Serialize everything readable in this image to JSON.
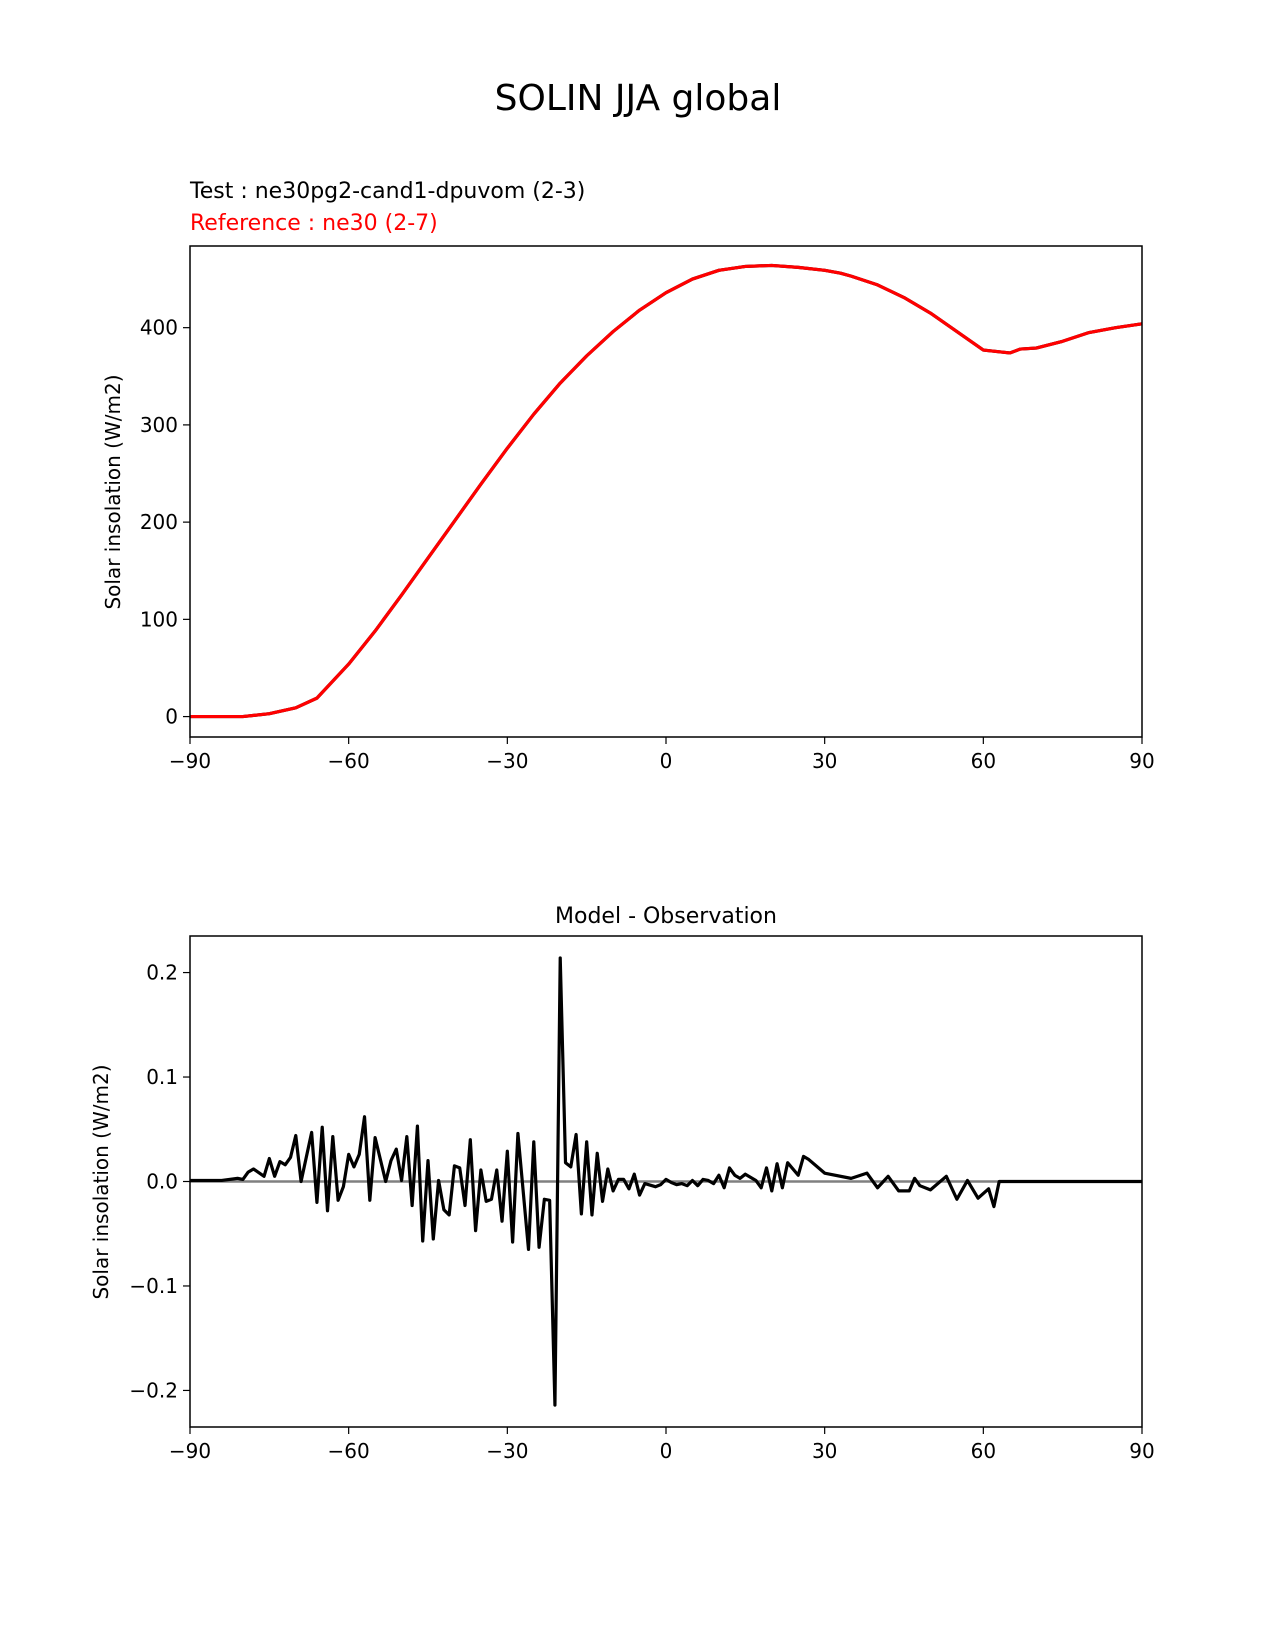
{
  "figure": {
    "title": "SOLIN JJA global"
  },
  "chart_data": [
    {
      "type": "line",
      "legend_test": "Test : ne30pg2-cand1-dpuvom (2-3)",
      "legend_reference": "Reference : ne30 (2-7)",
      "title": "",
      "xlabel": "",
      "ylabel": "Solar insolation (W/m2)",
      "xlim": [
        -90,
        90
      ],
      "ylim": [
        -21,
        484
      ],
      "xticks": [
        -90,
        -60,
        -30,
        0,
        30,
        60,
        90
      ],
      "xtick_labels": [
        "−90",
        "−60",
        "−30",
        "0",
        "30",
        "60",
        "90"
      ],
      "yticks": [
        0,
        100,
        200,
        300,
        400
      ],
      "ytick_labels": [
        "0",
        "100",
        "200",
        "300",
        "400"
      ],
      "colors": {
        "test": "#000000",
        "reference": "#ff0000"
      },
      "x": [
        -90,
        -85,
        -80,
        -75,
        -70,
        -66,
        -60,
        -55,
        -50,
        -45,
        -40,
        -35,
        -30,
        -25,
        -20,
        -15,
        -10,
        -5,
        0,
        5,
        10,
        15,
        20,
        25,
        30,
        33,
        35,
        40,
        45,
        50,
        55,
        60,
        65,
        67,
        70,
        75,
        80,
        85,
        90
      ],
      "series": [
        {
          "name": "Test : ne30pg2-cand1-dpuvom (2-3)",
          "values": [
            0,
            0,
            0,
            3,
            9,
            19,
            54,
            88,
            125,
            163,
            201,
            239,
            276,
            311,
            343,
            371,
            396,
            418,
            436,
            450,
            459,
            463,
            464,
            462,
            459,
            456,
            453,
            444,
            431,
            415,
            396,
            377,
            374,
            378,
            379,
            386,
            395,
            400,
            404
          ]
        },
        {
          "name": "Reference : ne30 (2-7)",
          "values": [
            0,
            0,
            0,
            3,
            9,
            19,
            54,
            88,
            125,
            163,
            201,
            239,
            276,
            311,
            343,
            371,
            396,
            418,
            436,
            450,
            459,
            463,
            464,
            462,
            459,
            456,
            453,
            444,
            431,
            415,
            396,
            377,
            374,
            378,
            379,
            386,
            395,
            400,
            404
          ]
        }
      ]
    },
    {
      "type": "line",
      "title": "Model - Observation",
      "xlabel": "",
      "ylabel": "Solar insolation (W/m2)",
      "xlim": [
        -90,
        90
      ],
      "ylim": [
        -0.235,
        0.235
      ],
      "xticks": [
        -90,
        -60,
        -30,
        0,
        30,
        60,
        90
      ],
      "xtick_labels": [
        "−90",
        "−60",
        "−30",
        "0",
        "30",
        "60",
        "90"
      ],
      "yticks": [
        -0.2,
        -0.1,
        0.0,
        0.1,
        0.2
      ],
      "ytick_labels": [
        "−0.2",
        "−0.1",
        "0.0",
        "0.1",
        "0.2"
      ],
      "colors": {
        "difference": "#000000",
        "zero_line": "#808080"
      },
      "zero_line": 0,
      "series": [
        {
          "name": "",
          "x": [
            -90,
            -84,
            -81,
            -80,
            -79,
            -78,
            -76,
            -75,
            -74,
            -73,
            -72,
            -71,
            -70,
            -69,
            -67,
            -66,
            -65,
            -64,
            -63,
            -62,
            -61,
            -60,
            -59,
            -58,
            -57,
            -56,
            -55,
            -53,
            -52,
            -51,
            -50,
            -49,
            -48,
            -47,
            -46,
            -45,
            -44,
            -43,
            -42,
            -41,
            -40,
            -39,
            -38,
            -37,
            -36,
            -35,
            -34,
            -33,
            -32,
            -31,
            -30,
            -29,
            -28,
            -26,
            -25,
            -24,
            -23,
            -22,
            -21,
            -20,
            -19,
            -18,
            -17,
            -16,
            -15,
            -14,
            -13,
            -12,
            -11,
            -10,
            -9,
            -8,
            -7,
            -6,
            -5,
            -4,
            -2,
            -1,
            0,
            1,
            2,
            3,
            4,
            5,
            6,
            7,
            8,
            9,
            10,
            11,
            12,
            13,
            14,
            15,
            17,
            18,
            19,
            20,
            21,
            22,
            23,
            25,
            26,
            27,
            30,
            35,
            38,
            40,
            42,
            44,
            46,
            47,
            48,
            50,
            53,
            55,
            57,
            59,
            61,
            62,
            63,
            64,
            65,
            67,
            69,
            70,
            72,
            73,
            75,
            76,
            77,
            78,
            79,
            80,
            82,
            83,
            84,
            85,
            86,
            87,
            88,
            89,
            90
          ],
          "values": [
            0.001,
            0.001,
            0.003,
            0.002,
            0.009,
            0.012,
            0.005,
            0.022,
            0.005,
            0.019,
            0.016,
            0.023,
            0.044,
            0.0,
            0.047,
            -0.02,
            0.052,
            -0.028,
            0.043,
            -0.018,
            -0.005,
            0.026,
            0.014,
            0.026,
            0.062,
            -0.018,
            0.042,
            0.0,
            0.02,
            0.031,
            0.001,
            0.043,
            -0.023,
            0.053,
            -0.057,
            0.02,
            -0.055,
            0.001,
            -0.027,
            -0.032,
            0.015,
            0.013,
            -0.023,
            0.04,
            -0.047,
            0.011,
            -0.019,
            -0.017,
            0.011,
            -0.038,
            0.029,
            -0.058,
            0.046,
            -0.065,
            0.038,
            -0.063,
            -0.017,
            -0.018,
            -0.214,
            0.214,
            0.018,
            0.014,
            0.045,
            -0.031,
            0.038,
            -0.032,
            0.027,
            -0.019,
            0.012,
            -0.009,
            0.002,
            0.002,
            -0.007,
            0.007,
            -0.013,
            -0.002,
            -0.005,
            -0.003,
            0.002,
            -0.001,
            -0.003,
            -0.002,
            -0.004,
            0.001,
            -0.004,
            0.002,
            0.001,
            -0.002,
            0.006,
            -0.006,
            0.013,
            0.006,
            0.003,
            0.007,
            0.001,
            -0.006,
            0.013,
            -0.009,
            0.017,
            -0.006,
            0.018,
            0.006,
            0.024,
            0.021,
            0.008,
            0.003,
            0.008,
            -0.006,
            0.005,
            -0.009,
            -0.009,
            0.003,
            -0.004,
            -0.008,
            0.005,
            -0.017,
            0.001,
            -0.016,
            -0.007,
            -0.024,
            0.0,
            0.0,
            0.0,
            0.0,
            0.0,
            0.0,
            0.0,
            0.0,
            0.0,
            0.0,
            0.0,
            0.0,
            0.0,
            0.0,
            0.0,
            0.0,
            0.0,
            0.0,
            0.0,
            0.0,
            0.0,
            0.0,
            0.0
          ]
        }
      ]
    }
  ]
}
